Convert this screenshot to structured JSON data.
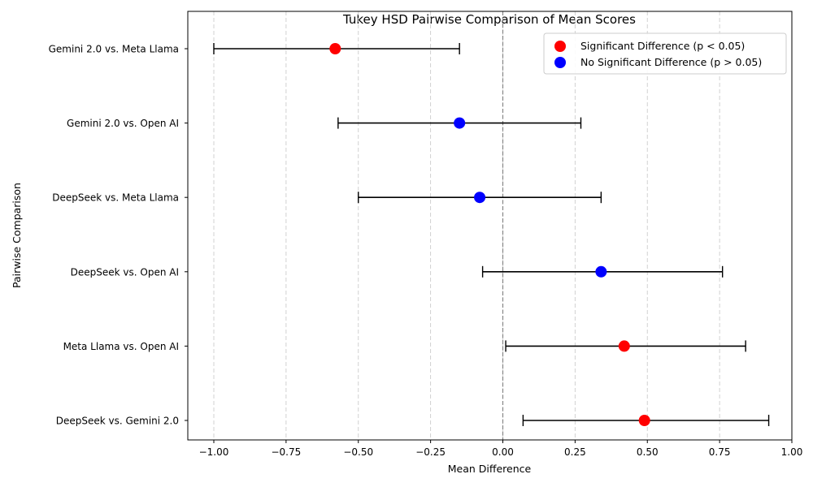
{
  "chart_data": {
    "type": "scatter",
    "title": "Tukey HSD Pairwise Comparison of Mean Scores",
    "xlabel": "Mean Difference",
    "ylabel": "Pairwise Comparison",
    "xlim": [
      -1.09,
      1.0
    ],
    "x_ticks": [
      -1.0,
      -0.75,
      -0.5,
      -0.25,
      0.0,
      0.25,
      0.5,
      0.75,
      1.0
    ],
    "x_tick_labels": [
      "−1.00",
      "−0.75",
      "−0.50",
      "−0.25",
      "0.00",
      "0.25",
      "0.50",
      "0.75",
      "1.00"
    ],
    "grid": "x-dashed",
    "reference_line_x": 0.0,
    "legend_position": "top-right",
    "legend": [
      {
        "label": "Significant Difference (p < 0.05)",
        "color": "#ff0000"
      },
      {
        "label": "No Significant Difference (p > 0.05)",
        "color": "#0000ff"
      }
    ],
    "comparisons": [
      {
        "label": "Gemini 2.0 vs. Meta Llama",
        "mean": -0.58,
        "lower": -1.0,
        "upper": -0.15,
        "significant": true
      },
      {
        "label": "Gemini 2.0 vs. Open AI",
        "mean": -0.15,
        "lower": -0.57,
        "upper": 0.27,
        "significant": false
      },
      {
        "label": "DeepSeek vs. Meta Llama",
        "mean": -0.08,
        "lower": -0.5,
        "upper": 0.34,
        "significant": false
      },
      {
        "label": "DeepSeek vs. Open AI",
        "mean": 0.34,
        "lower": -0.07,
        "upper": 0.76,
        "significant": false
      },
      {
        "label": "Meta Llama vs. Open AI",
        "mean": 0.42,
        "lower": 0.01,
        "upper": 0.84,
        "significant": true
      },
      {
        "label": "DeepSeek vs. Gemini 2.0",
        "mean": 0.49,
        "lower": 0.07,
        "upper": 0.92,
        "significant": true
      }
    ]
  }
}
